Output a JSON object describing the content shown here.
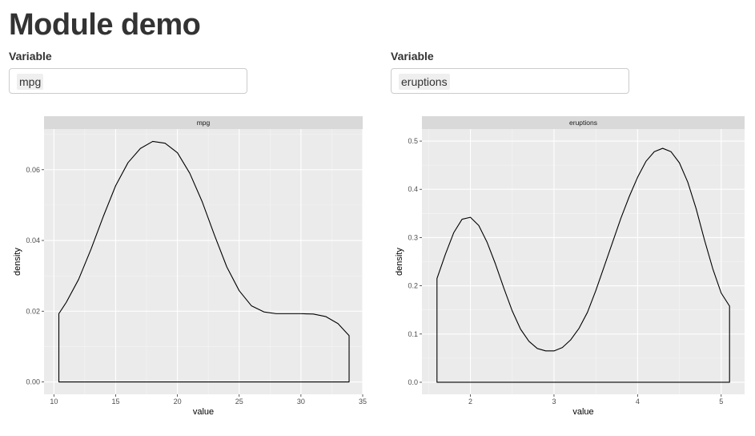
{
  "page": {
    "title": "Module demo"
  },
  "modules": [
    {
      "input": {
        "label": "Variable",
        "selected": "mpg"
      },
      "chart_data": {
        "type": "area",
        "strip_label": "mpg",
        "xlabel": "value",
        "ylabel": "density",
        "xlim": [
          9.2,
          35.0
        ],
        "ylim": [
          -0.0035,
          0.0715
        ],
        "x_ticks": [
          10,
          15,
          20,
          25,
          30,
          35
        ],
        "y_ticks": [
          0.0,
          0.02,
          0.04,
          0.06
        ],
        "y_tick_labels": [
          "0.00",
          "0.02",
          "0.04",
          "0.06"
        ],
        "grid": true,
        "series": [
          {
            "x": [
              10.4,
              11,
              12,
              13,
              14,
              15,
              16,
              17,
              18,
              19,
              20,
              21,
              22,
              23,
              24,
              25,
              26,
              27,
              28,
              29,
              30,
              31,
              32,
              33,
              33.9
            ],
            "y": [
              0.0193,
              0.0225,
              0.029,
              0.0375,
              0.0468,
              0.0555,
              0.062,
              0.066,
              0.068,
              0.0675,
              0.0648,
              0.059,
              0.051,
              0.0415,
              0.0325,
              0.0258,
              0.0215,
              0.0198,
              0.0193,
              0.0193,
              0.0193,
              0.0192,
              0.0185,
              0.0165,
              0.0131
            ]
          }
        ]
      }
    },
    {
      "input": {
        "label": "Variable",
        "selected": "eruptions"
      },
      "chart_data": {
        "type": "area",
        "strip_label": "eruptions",
        "xlabel": "value",
        "ylabel": "density",
        "xlim": [
          1.42,
          5.28
        ],
        "ylim": [
          -0.025,
          0.525
        ],
        "x_ticks": [
          2,
          3,
          4,
          5
        ],
        "y_ticks": [
          0.0,
          0.1,
          0.2,
          0.3,
          0.4,
          0.5
        ],
        "y_tick_labels": [
          "0.0",
          "0.1",
          "0.2",
          "0.3",
          "0.4",
          "0.5"
        ],
        "grid": true,
        "series": [
          {
            "x": [
              1.6,
              1.7,
              1.8,
              1.9,
              2.0,
              2.1,
              2.2,
              2.3,
              2.4,
              2.5,
              2.6,
              2.7,
              2.8,
              2.9,
              3.0,
              3.1,
              3.2,
              3.3,
              3.4,
              3.5,
              3.6,
              3.7,
              3.8,
              3.9,
              4.0,
              4.1,
              4.2,
              4.3,
              4.4,
              4.5,
              4.6,
              4.7,
              4.8,
              4.9,
              5.0,
              5.1
            ],
            "y": [
              0.215,
              0.265,
              0.31,
              0.338,
              0.342,
              0.325,
              0.29,
              0.245,
              0.195,
              0.148,
              0.11,
              0.085,
              0.07,
              0.065,
              0.065,
              0.072,
              0.088,
              0.112,
              0.145,
              0.19,
              0.24,
              0.29,
              0.34,
              0.385,
              0.425,
              0.458,
              0.478,
              0.485,
              0.478,
              0.455,
              0.415,
              0.36,
              0.295,
              0.235,
              0.185,
              0.158
            ]
          }
        ]
      }
    }
  ]
}
